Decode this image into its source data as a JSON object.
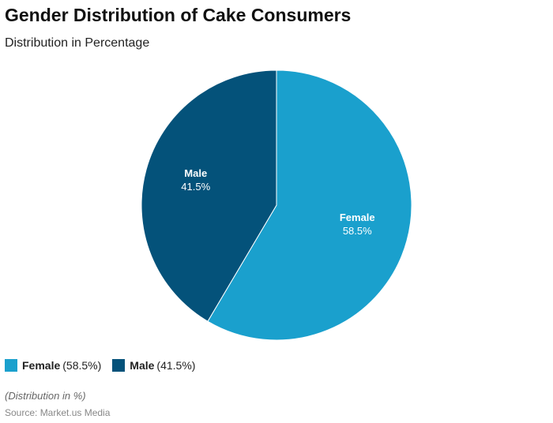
{
  "title": "Gender Distribution of Cake Consumers",
  "subtitle": "Distribution in Percentage",
  "note": "(Distribution in %)",
  "source": "Source: Market.us Media",
  "chart_data": {
    "type": "pie",
    "slices": [
      {
        "label": "Female",
        "value": 58.5,
        "display": "58.5%",
        "legend_value": "(58.5%)",
        "color": "#1aa0cd"
      },
      {
        "label": "Male",
        "value": 41.5,
        "display": "41.5%",
        "legend_value": "(41.5%)",
        "color": "#04527a"
      }
    ],
    "legend_position": "bottom-left"
  }
}
